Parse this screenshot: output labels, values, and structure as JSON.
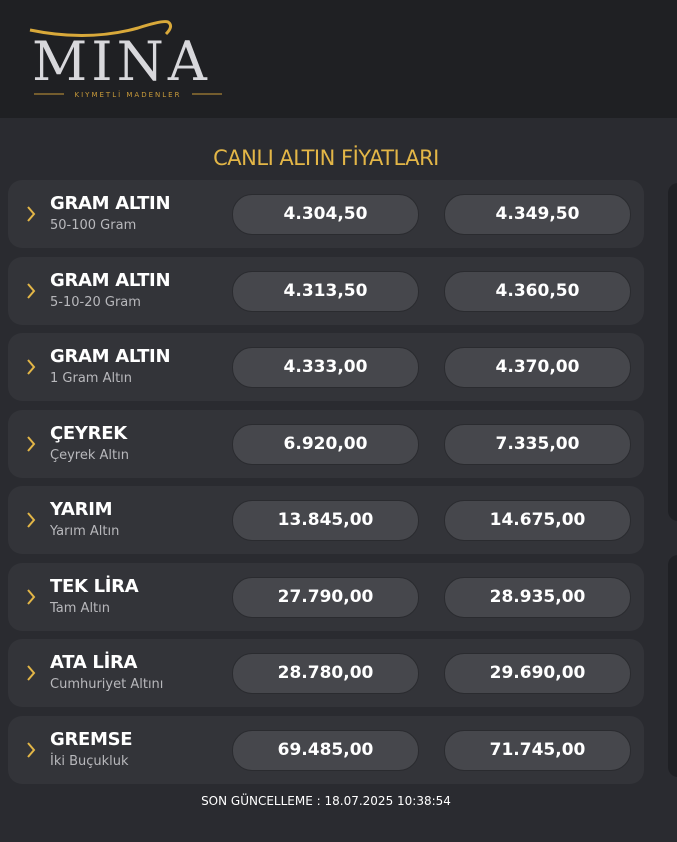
{
  "brand": {
    "logo_text": "MINA",
    "tagline": "KIYMETLİ MADENLER",
    "gold": "#e3b647"
  },
  "title": "CANLI ALTIN FİYATLARI",
  "rows": [
    {
      "name": "GRAM ALTIN",
      "sub": "50-100 Gram",
      "buy": "4.304,50",
      "sell": "4.349,50"
    },
    {
      "name": "GRAM ALTIN",
      "sub": "5-10-20 Gram",
      "buy": "4.313,50",
      "sell": "4.360,50"
    },
    {
      "name": "GRAM ALTIN",
      "sub": "1 Gram Altın",
      "buy": "4.333,00",
      "sell": "4.370,00"
    },
    {
      "name": "ÇEYREK",
      "sub": "Çeyrek Altın",
      "buy": "6.920,00",
      "sell": "7.335,00"
    },
    {
      "name": "YARIM",
      "sub": "Yarım Altın",
      "buy": "13.845,00",
      "sell": "14.675,00"
    },
    {
      "name": "TEK LİRA",
      "sub": "Tam Altın",
      "buy": "27.790,00",
      "sell": "28.935,00"
    },
    {
      "name": "ATA LİRA",
      "sub": "Cumhuriyet Altını",
      "buy": "28.780,00",
      "sell": "29.690,00"
    },
    {
      "name": "GREMSE",
      "sub": "İki Buçukluk",
      "buy": "69.485,00",
      "sell": "71.745,00"
    }
  ],
  "footer": "SON GÜNCELLEME : 18.07.2025 10:38:54"
}
